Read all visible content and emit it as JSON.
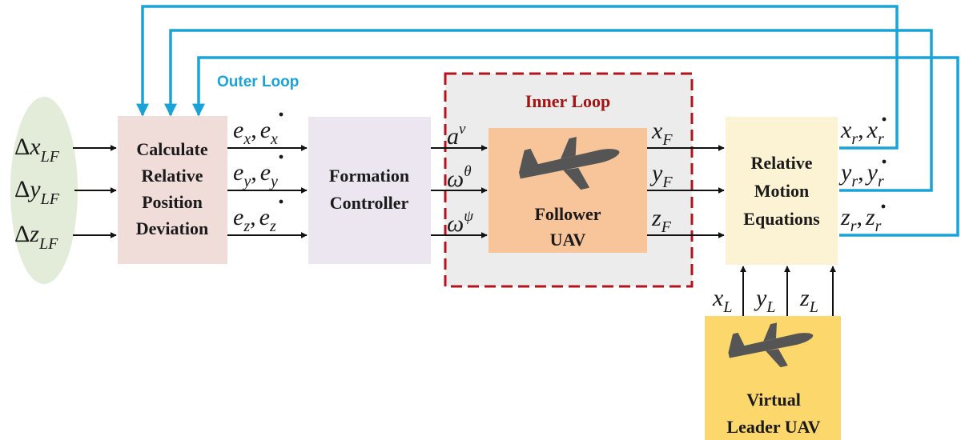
{
  "colors": {
    "outer_loop": "#1aa3d9",
    "inner_loop_border": "#b0141c",
    "input_ellipse": "#e3ecd8",
    "calc_block": "#f0dcd9",
    "controller_block": "#ebe6f0",
    "inner_region": "#ececec",
    "follower_block": "#f8c49a",
    "equations_block": "#fcf2d4",
    "leader_block": "#fcd86c",
    "plane": "#555555"
  },
  "labels": {
    "outer_loop": "Outer Loop",
    "inner_loop": "Inner Loop"
  },
  "blocks": {
    "calc": [
      "Calculate",
      "Relative",
      "Position",
      "Deviation"
    ],
    "controller": [
      "Formation",
      "Controller"
    ],
    "follower": [
      "Follower",
      "UAV"
    ],
    "equations": [
      "Relative",
      "Motion",
      "Equations"
    ],
    "leader": [
      "Virtual",
      "Leader UAV"
    ]
  },
  "signals": {
    "inputs": [
      {
        "base": "x",
        "sub": "LF"
      },
      {
        "base": "y",
        "sub": "LF"
      },
      {
        "base": "z",
        "sub": "LF"
      }
    ],
    "errors": [
      {
        "var": "e",
        "sub": "x"
      },
      {
        "var": "e",
        "sub": "y"
      },
      {
        "var": "e",
        "sub": "z"
      }
    ],
    "commands": [
      {
        "base": "a",
        "sup": "v"
      },
      {
        "base": "ω",
        "sup": "θ"
      },
      {
        "base": "ω",
        "sup": "ψ"
      }
    ],
    "follower_states": [
      {
        "base": "x",
        "sub": "F"
      },
      {
        "base": "y",
        "sub": "F"
      },
      {
        "base": "z",
        "sub": "F"
      }
    ],
    "relative_states": [
      {
        "base": "x",
        "sub": "r"
      },
      {
        "base": "y",
        "sub": "r"
      },
      {
        "base": "z",
        "sub": "r"
      }
    ],
    "leader_states": [
      {
        "base": "x",
        "sub": "L"
      },
      {
        "base": "y",
        "sub": "L"
      },
      {
        "base": "z",
        "sub": "L"
      }
    ]
  }
}
